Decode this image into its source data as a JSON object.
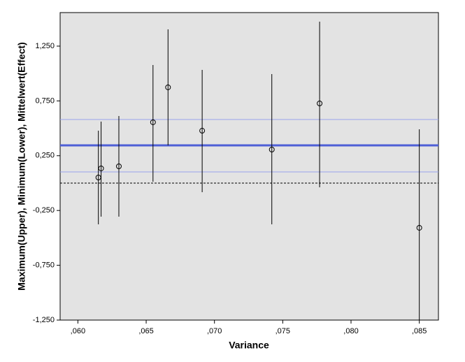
{
  "chart_data": {
    "type": "scatter",
    "x_label": "Variance",
    "y_label": "Maximum(Upper), Minimum(Lower), Mittelwert(Effect)",
    "x": [
      0.0615,
      0.0617,
      0.063,
      0.0655,
      0.0666,
      0.0691,
      0.0742,
      0.0777,
      0.085
    ],
    "series": [
      {
        "color": "#000000",
        "values": [
          0.051,
          0.134,
          0.153,
          0.555,
          0.874,
          0.478,
          0.306,
          0.727,
          -0.408
        ]
      }
    ],
    "upper": [
      0.478,
      0.561,
      0.612,
      1.078,
      1.403,
      1.033,
      0.995,
      1.473,
      0.491
    ],
    "lower": [
      -0.376,
      -0.306,
      -0.306,
      0.013,
      0.344,
      -0.083,
      -0.376,
      -0.038,
      -1.25
    ],
    "reference_lines": [
      {
        "value": 0.344,
        "color": "#4e5fd6",
        "width": 3,
        "dashed": false
      },
      {
        "value": 0.58,
        "color": "#9aa3ee",
        "width": 1,
        "dashed": false
      },
      {
        "value": 0.102,
        "color": "#9aa3ee",
        "width": 1,
        "dashed": false
      },
      {
        "value": 0,
        "color": "#000000",
        "width": 1,
        "dashed": true
      }
    ],
    "xlim": [
      0.0587,
      0.0864
    ],
    "ylim": [
      -1.25,
      1.556
    ],
    "xticks": [
      {
        "value": 0.06,
        "label": ",060"
      },
      {
        "value": 0.065,
        "label": ",065"
      },
      {
        "value": 0.07,
        "label": ",070"
      },
      {
        "value": 0.075,
        "label": ",075"
      },
      {
        "value": 0.08,
        "label": ",080"
      },
      {
        "value": 0.085,
        "label": ",085"
      }
    ],
    "yticks": [
      {
        "value": -1.25,
        "label": "-1,250"
      },
      {
        "value": -0.75,
        "label": "-0,750"
      },
      {
        "value": -0.25,
        "label": "-0,250"
      },
      {
        "value": 0.25,
        "label": "0,250"
      },
      {
        "value": 0.75,
        "label": "0,750"
      },
      {
        "value": 1.25,
        "label": "1,250"
      }
    ],
    "plot_background": "#e3e3e3"
  }
}
